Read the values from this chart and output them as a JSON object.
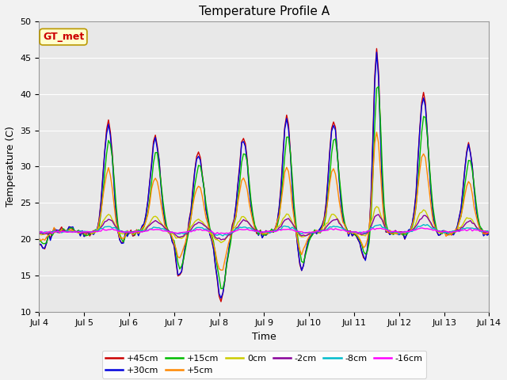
{
  "title": "Temperature Profile A",
  "xlabel": "Time",
  "ylabel": "Temperature (C)",
  "ylim": [
    10,
    50
  ],
  "xlim": [
    0,
    240
  ],
  "xtick_labels": [
    "Jul 4",
    "Jul 5",
    "Jul 6",
    "Jul 7",
    "Jul 8",
    "Jul 9",
    "Jul 10",
    "Jul 11",
    "Jul 12",
    "Jul 13",
    "Jul 14"
  ],
  "xtick_positions": [
    0,
    24,
    48,
    72,
    96,
    120,
    144,
    168,
    192,
    216,
    240
  ],
  "series_labels": [
    "+45cm",
    "+30cm",
    "+15cm",
    "+5cm",
    "0cm",
    "-2cm",
    "-8cm",
    "-16cm"
  ],
  "series_colors": [
    "#cc0000",
    "#0000dd",
    "#00bb00",
    "#ff8800",
    "#cccc00",
    "#880099",
    "#00bbcc",
    "#ff00ff"
  ],
  "annotation_text": "GT_met",
  "annotation_bg": "#ffffcc",
  "annotation_border": "#bb9900",
  "annotation_text_color": "#cc0000",
  "plot_bg": "#e8e8e8",
  "fig_bg": "#f2f2f2",
  "grid_color": "#ffffff",
  "title_fontsize": 11,
  "axis_fontsize": 9,
  "tick_fontsize": 8,
  "legend_fontsize": 8,
  "linewidth": 1.0
}
